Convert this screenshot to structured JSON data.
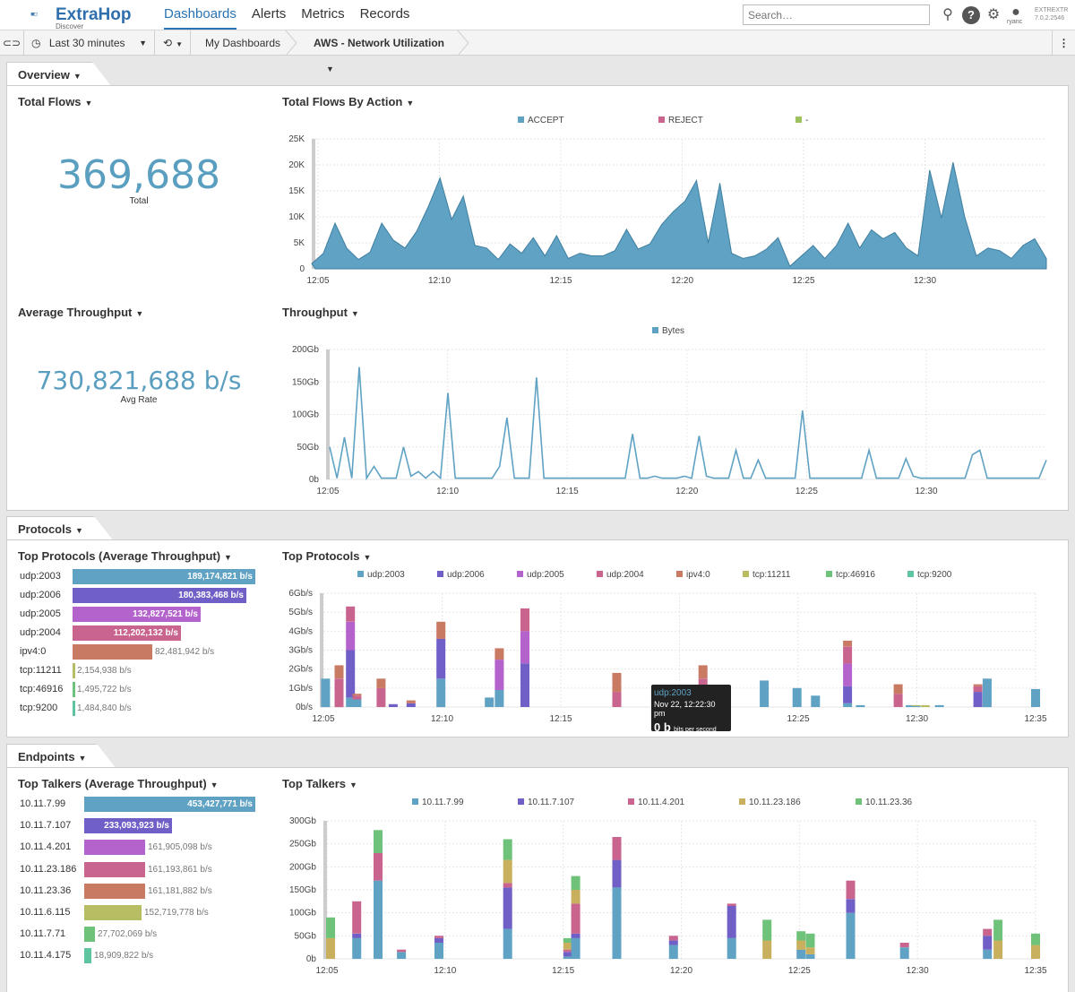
{
  "app": {
    "brand": "ExtraHop",
    "brand_sub": "Discover",
    "nav": [
      "Dashboards",
      "Alerts",
      "Metrics",
      "Records"
    ],
    "search_placeholder": "Search…",
    "user": "ryanc",
    "version_line1": "EXTREXTR",
    "version_line2": "7.0.2.2546"
  },
  "toolbar": {
    "time_range": "Last 30 minutes",
    "breadcrumb_parent": "My Dashboards",
    "dashboard_title": "AWS - Network Utilization"
  },
  "sections": {
    "overview": "Overview",
    "protocols": "Protocols",
    "endpoints": "Endpoints"
  },
  "widgets": {
    "total_flows": {
      "title": "Total Flows",
      "value": "369,688",
      "label": "Total"
    },
    "avg_throughput": {
      "title": "Average Throughput",
      "value": "730,821,688 b/s",
      "label": "Avg Rate"
    },
    "flows_by_action_title": "Total Flows By Action",
    "throughput_title": "Throughput",
    "top_protocols_avg_title": "Top Protocols (Average Throughput)",
    "top_protocols_title": "Top Protocols",
    "top_talkers_avg_title": "Top Talkers (Average Throughput)",
    "top_talkers_title": "Top Talkers"
  },
  "protocol_bars": [
    {
      "name": "udp:2003",
      "value": "189,174,821 b/s",
      "frac": 1.0,
      "color": "#5fa2c4"
    },
    {
      "name": "udp:2006",
      "value": "180,383,468 b/s",
      "frac": 0.953,
      "color": "#6f5fc6"
    },
    {
      "name": "udp:2005",
      "value": "132,827,521 b/s",
      "frac": 0.702,
      "color": "#b462cc"
    },
    {
      "name": "udp:2004",
      "value": "112,202,132 b/s",
      "frac": 0.593,
      "color": "#c8648d"
    },
    {
      "name": "ipv4:0",
      "value": "82,481,942 b/s",
      "frac": 0.436,
      "color": "#c87a63"
    },
    {
      "name": "tcp:11211",
      "value": "2,154,938 b/s",
      "frac": 0.011,
      "color": "#b6bd62"
    },
    {
      "name": "tcp:46916",
      "value": "1,495,722 b/s",
      "frac": 0.008,
      "color": "#6fc27a"
    },
    {
      "name": "tcp:9200",
      "value": "1,484,840 b/s",
      "frac": 0.008,
      "color": "#5fc4a0"
    }
  ],
  "talker_bars": [
    {
      "name": "10.11.7.99",
      "value": "453,427,771 b/s",
      "frac": 1.0,
      "color": "#5fa2c4"
    },
    {
      "name": "10.11.7.107",
      "value": "233,093,923 b/s",
      "frac": 0.514,
      "color": "#6f5fc6"
    },
    {
      "name": "10.11.4.201",
      "value": "161,905,098 b/s",
      "frac": 0.357,
      "color": "#b462cc"
    },
    {
      "name": "10.11.23.186",
      "value": "161,193,861 b/s",
      "frac": 0.356,
      "color": "#c8648d"
    },
    {
      "name": "10.11.23.36",
      "value": "161,181,882 b/s",
      "frac": 0.356,
      "color": "#c87a63"
    },
    {
      "name": "10.11.6.115",
      "value": "152,719,778 b/s",
      "frac": 0.337,
      "color": "#b6bd62"
    },
    {
      "name": "10.11.7.71",
      "value": "27,702,069 b/s",
      "frac": 0.061,
      "color": "#6fc27a"
    },
    {
      "name": "10.11.4.175",
      "value": "18,909,822 b/s",
      "frac": 0.042,
      "color": "#5fc4a0"
    }
  ],
  "tooltip": {
    "series": "udp:2003",
    "time": "Nov 22, 12:22:30 pm",
    "value": "0 b",
    "unit": "bits per second"
  },
  "chart_data": [
    {
      "id": "flows_by_action",
      "type": "area",
      "title": "Total Flows By Action",
      "legend": [
        "ACCEPT",
        "REJECT",
        "-"
      ],
      "legend_colors": [
        "#5fa2c4",
        "#c8648d",
        "#9cc260"
      ],
      "x_ticks": [
        "12:05",
        "12:10",
        "12:15",
        "12:20",
        "12:25",
        "12:30"
      ],
      "y_ticks": [
        "0",
        "5K",
        "10K",
        "15K",
        "20K",
        "25K"
      ],
      "ylim": [
        0,
        25000
      ],
      "x_start_min": 5,
      "x_step_min": 0.5,
      "series": [
        {
          "name": "ACCEPT",
          "values": [
            1000,
            3000,
            8800,
            4000,
            1800,
            3200,
            8800,
            5500,
            4000,
            7200,
            12000,
            17500,
            9500,
            14000,
            4500,
            4000,
            1800,
            4800,
            3000,
            6000,
            2500,
            6400,
            2000,
            3000,
            2500,
            2500,
            3500,
            7600,
            3800,
            4800,
            8500,
            11000,
            13000,
            17000,
            5000,
            16500,
            3000,
            2000,
            2500,
            3800,
            6000,
            500,
            2500,
            4500,
            2000,
            4500,
            8800,
            4000,
            7500,
            5800,
            7000,
            4000,
            2500,
            19000,
            9800,
            20500,
            10000,
            2500,
            4000,
            3500,
            2000,
            4500,
            5800,
            2000
          ]
        }
      ]
    },
    {
      "id": "throughput",
      "type": "line",
      "title": "Throughput",
      "legend": [
        "Bytes"
      ],
      "legend_colors": [
        "#5fa2c4"
      ],
      "x_ticks": [
        "12:05",
        "12:10",
        "12:15",
        "12:20",
        "12:25",
        "12:30"
      ],
      "y_ticks": [
        "0b",
        "50Gb",
        "100Gb",
        "150Gb",
        "200Gb"
      ],
      "ylim": [
        0,
        200
      ],
      "x_start_min": 5,
      "x_step_min": 0.5,
      "series": [
        {
          "name": "Bytes",
          "values": [
            50,
            2,
            65,
            2,
            173,
            2,
            20,
            2,
            2,
            2,
            50,
            5,
            12,
            2,
            12,
            2,
            133,
            2,
            2,
            2,
            2,
            2,
            2,
            20,
            95,
            2,
            2,
            2,
            157,
            2,
            2,
            2,
            2,
            2,
            2,
            2,
            2,
            2,
            2,
            2,
            2,
            70,
            2,
            2,
            5,
            2,
            2,
            2,
            5,
            2,
            67,
            5,
            2,
            2,
            2,
            45,
            2,
            2,
            30,
            2,
            2,
            2,
            2,
            2,
            106,
            2,
            2,
            2,
            2,
            2,
            2,
            2,
            2,
            45,
            2,
            2,
            2,
            2,
            32,
            5,
            2,
            2,
            2,
            2,
            2,
            2,
            2,
            38,
            45,
            2,
            2,
            2,
            2,
            2,
            2,
            2,
            2,
            30
          ]
        }
      ]
    },
    {
      "id": "top_protocols",
      "type": "bar",
      "stacked": true,
      "title": "Top Protocols",
      "legend": [
        "udp:2003",
        "udp:2006",
        "udp:2005",
        "udp:2004",
        "ipv4:0",
        "tcp:11211",
        "tcp:46916",
        "tcp:9200"
      ],
      "legend_colors": [
        "#5fa2c4",
        "#6f5fc6",
        "#b462cc",
        "#c8648d",
        "#c87a63",
        "#b6bd62",
        "#6fc27a",
        "#5fc4a0"
      ],
      "x_ticks": [
        "12:05",
        "12:10",
        "12:15",
        "12:20",
        "12:25",
        "12:30",
        "12:35"
      ],
      "y_ticks": [
        "0b/s",
        "1Gb/s",
        "2Gb/s",
        "3Gb/s",
        "4Gb/s",
        "5Gb/s",
        "6Gb/s"
      ],
      "ylim": [
        0,
        6
      ],
      "x_start_min": 5,
      "x_step_min": 0.5,
      "bars": [
        {
          "t": 0.3,
          "v": [
            1.5,
            0,
            0,
            0,
            0,
            0,
            0,
            0
          ]
        },
        {
          "t": 2.2,
          "v": [
            0,
            0,
            0,
            1.5,
            0.7,
            0,
            0,
            0
          ]
        },
        {
          "t": 3.8,
          "v": [
            0.5,
            2.5,
            1.5,
            0.8,
            0,
            0,
            0,
            0
          ]
        },
        {
          "t": 4.7,
          "v": [
            0.4,
            0,
            0,
            0.2,
            0.1,
            0,
            0,
            0
          ]
        },
        {
          "t": 8.1,
          "v": [
            0,
            0,
            0,
            1.0,
            0.5,
            0,
            0,
            0
          ]
        },
        {
          "t": 9.8,
          "v": [
            0,
            0.15,
            0,
            0,
            0,
            0,
            0,
            0
          ]
        },
        {
          "t": 12.3,
          "v": [
            0,
            0.2,
            0,
            0,
            0.15,
            0,
            0,
            0
          ]
        },
        {
          "t": 16.5,
          "v": [
            1.5,
            2.1,
            0,
            0,
            0.9,
            0,
            0,
            0
          ]
        },
        {
          "t": 23.3,
          "v": [
            0.5,
            0,
            0,
            0,
            0,
            0,
            0,
            0
          ]
        },
        {
          "t": 24.7,
          "v": [
            0.9,
            0,
            1.6,
            0,
            0.6,
            0,
            0,
            0
          ]
        },
        {
          "t": 28.3,
          "v": [
            0,
            2.3,
            1.7,
            1.2,
            0,
            0,
            0,
            0
          ]
        },
        {
          "t": 41.2,
          "v": [
            0,
            0,
            0,
            0.8,
            1.0,
            0,
            0,
            0
          ]
        },
        {
          "t": 53.3,
          "v": [
            0,
            0.7,
            0,
            0.8,
            0.7,
            0,
            0,
            0
          ]
        },
        {
          "t": 61.9,
          "v": [
            1.4,
            0,
            0,
            0,
            0,
            0,
            0,
            0
          ]
        },
        {
          "t": 66.5,
          "v": [
            1.0,
            0,
            0,
            0,
            0,
            0,
            0,
            0
          ]
        },
        {
          "t": 69.1,
          "v": [
            0.6,
            0,
            0,
            0,
            0,
            0,
            0,
            0
          ]
        },
        {
          "t": 73.6,
          "v": [
            0.2,
            0.9,
            1.2,
            0.9,
            0.3,
            0,
            0,
            0
          ]
        },
        {
          "t": 75.4,
          "v": [
            0.1,
            0,
            0,
            0,
            0,
            0,
            0,
            0
          ]
        },
        {
          "t": 80.7,
          "v": [
            0,
            0,
            0,
            0.7,
            0.5,
            0,
            0,
            0
          ]
        },
        {
          "t": 82.4,
          "v": [
            0.1,
            0,
            0,
            0,
            0,
            0,
            0,
            0
          ]
        },
        {
          "t": 83.2,
          "v": [
            0.05,
            0,
            0,
            0,
            0,
            0.05,
            0,
            0
          ]
        },
        {
          "t": 84.5,
          "v": [
            0,
            0,
            0,
            0,
            0,
            0.1,
            0,
            0
          ]
        },
        {
          "t": 86.5,
          "v": [
            0.1,
            0,
            0,
            0,
            0,
            0,
            0,
            0
          ]
        },
        {
          "t": 91.9,
          "v": [
            0,
            0.8,
            0,
            0.3,
            0.1,
            0,
            0,
            0
          ]
        },
        {
          "t": 93.2,
          "v": [
            1.5,
            0,
            0,
            0,
            0,
            0,
            0,
            0
          ]
        },
        {
          "t": 100.0,
          "v": [
            0.95,
            0,
            0,
            0,
            0,
            0,
            0,
            0
          ]
        }
      ]
    },
    {
      "id": "top_talkers",
      "type": "bar",
      "stacked": true,
      "title": "Top Talkers",
      "legend": [
        "10.11.7.99",
        "10.11.7.107",
        "10.11.4.201",
        "10.11.23.186",
        "10.11.23.36"
      ],
      "legend_colors": [
        "#5fa2c4",
        "#6f5fc6",
        "#c8648d",
        "#c9b05e",
        "#6fc27a"
      ],
      "x_ticks": [
        "12:05",
        "12:10",
        "12:15",
        "12:20",
        "12:25",
        "12:30",
        "12:35"
      ],
      "y_ticks": [
        "0b",
        "50Gb",
        "100Gb",
        "150Gb",
        "200Gb",
        "250Gb",
        "300Gb"
      ],
      "ylim": [
        0,
        300
      ],
      "x_start_min": 5,
      "x_step_min": 0.5,
      "bars": [
        {
          "t": 0.5,
          "v": [
            0,
            0,
            0,
            45,
            45
          ]
        },
        {
          "t": 4.2,
          "v": [
            45,
            10,
            70,
            0,
            0
          ]
        },
        {
          "t": 7.2,
          "v": [
            170,
            0,
            60,
            0,
            50
          ]
        },
        {
          "t": 10.5,
          "v": [
            15,
            0,
            5,
            0,
            0
          ]
        },
        {
          "t": 15.8,
          "v": [
            35,
            10,
            5,
            0,
            0
          ]
        },
        {
          "t": 25.5,
          "v": [
            65,
            90,
            10,
            50,
            45
          ]
        },
        {
          "t": 34.0,
          "v": [
            5,
            10,
            5,
            15,
            10
          ]
        },
        {
          "t": 35.1,
          "v": [
            45,
            10,
            65,
            30,
            30
          ]
        },
        {
          "t": 40.9,
          "v": [
            155,
            60,
            50,
            0,
            0
          ]
        },
        {
          "t": 48.9,
          "v": [
            30,
            10,
            10,
            0,
            0
          ]
        },
        {
          "t": 57.1,
          "v": [
            45,
            70,
            5,
            0,
            0
          ]
        },
        {
          "t": 62.1,
          "v": [
            0,
            0,
            0,
            40,
            45
          ]
        },
        {
          "t": 66.9,
          "v": [
            20,
            0,
            0,
            20,
            20
          ]
        },
        {
          "t": 68.2,
          "v": [
            10,
            0,
            0,
            15,
            30
          ]
        },
        {
          "t": 73.9,
          "v": [
            100,
            30,
            40,
            0,
            0
          ]
        },
        {
          "t": 81.5,
          "v": [
            25,
            0,
            10,
            0,
            0
          ]
        },
        {
          "t": 93.2,
          "v": [
            20,
            30,
            15,
            0,
            0
          ]
        },
        {
          "t": 94.7,
          "v": [
            0,
            0,
            0,
            40,
            45
          ]
        },
        {
          "t": 100.0,
          "v": [
            0,
            0,
            0,
            30,
            25
          ]
        }
      ]
    }
  ]
}
